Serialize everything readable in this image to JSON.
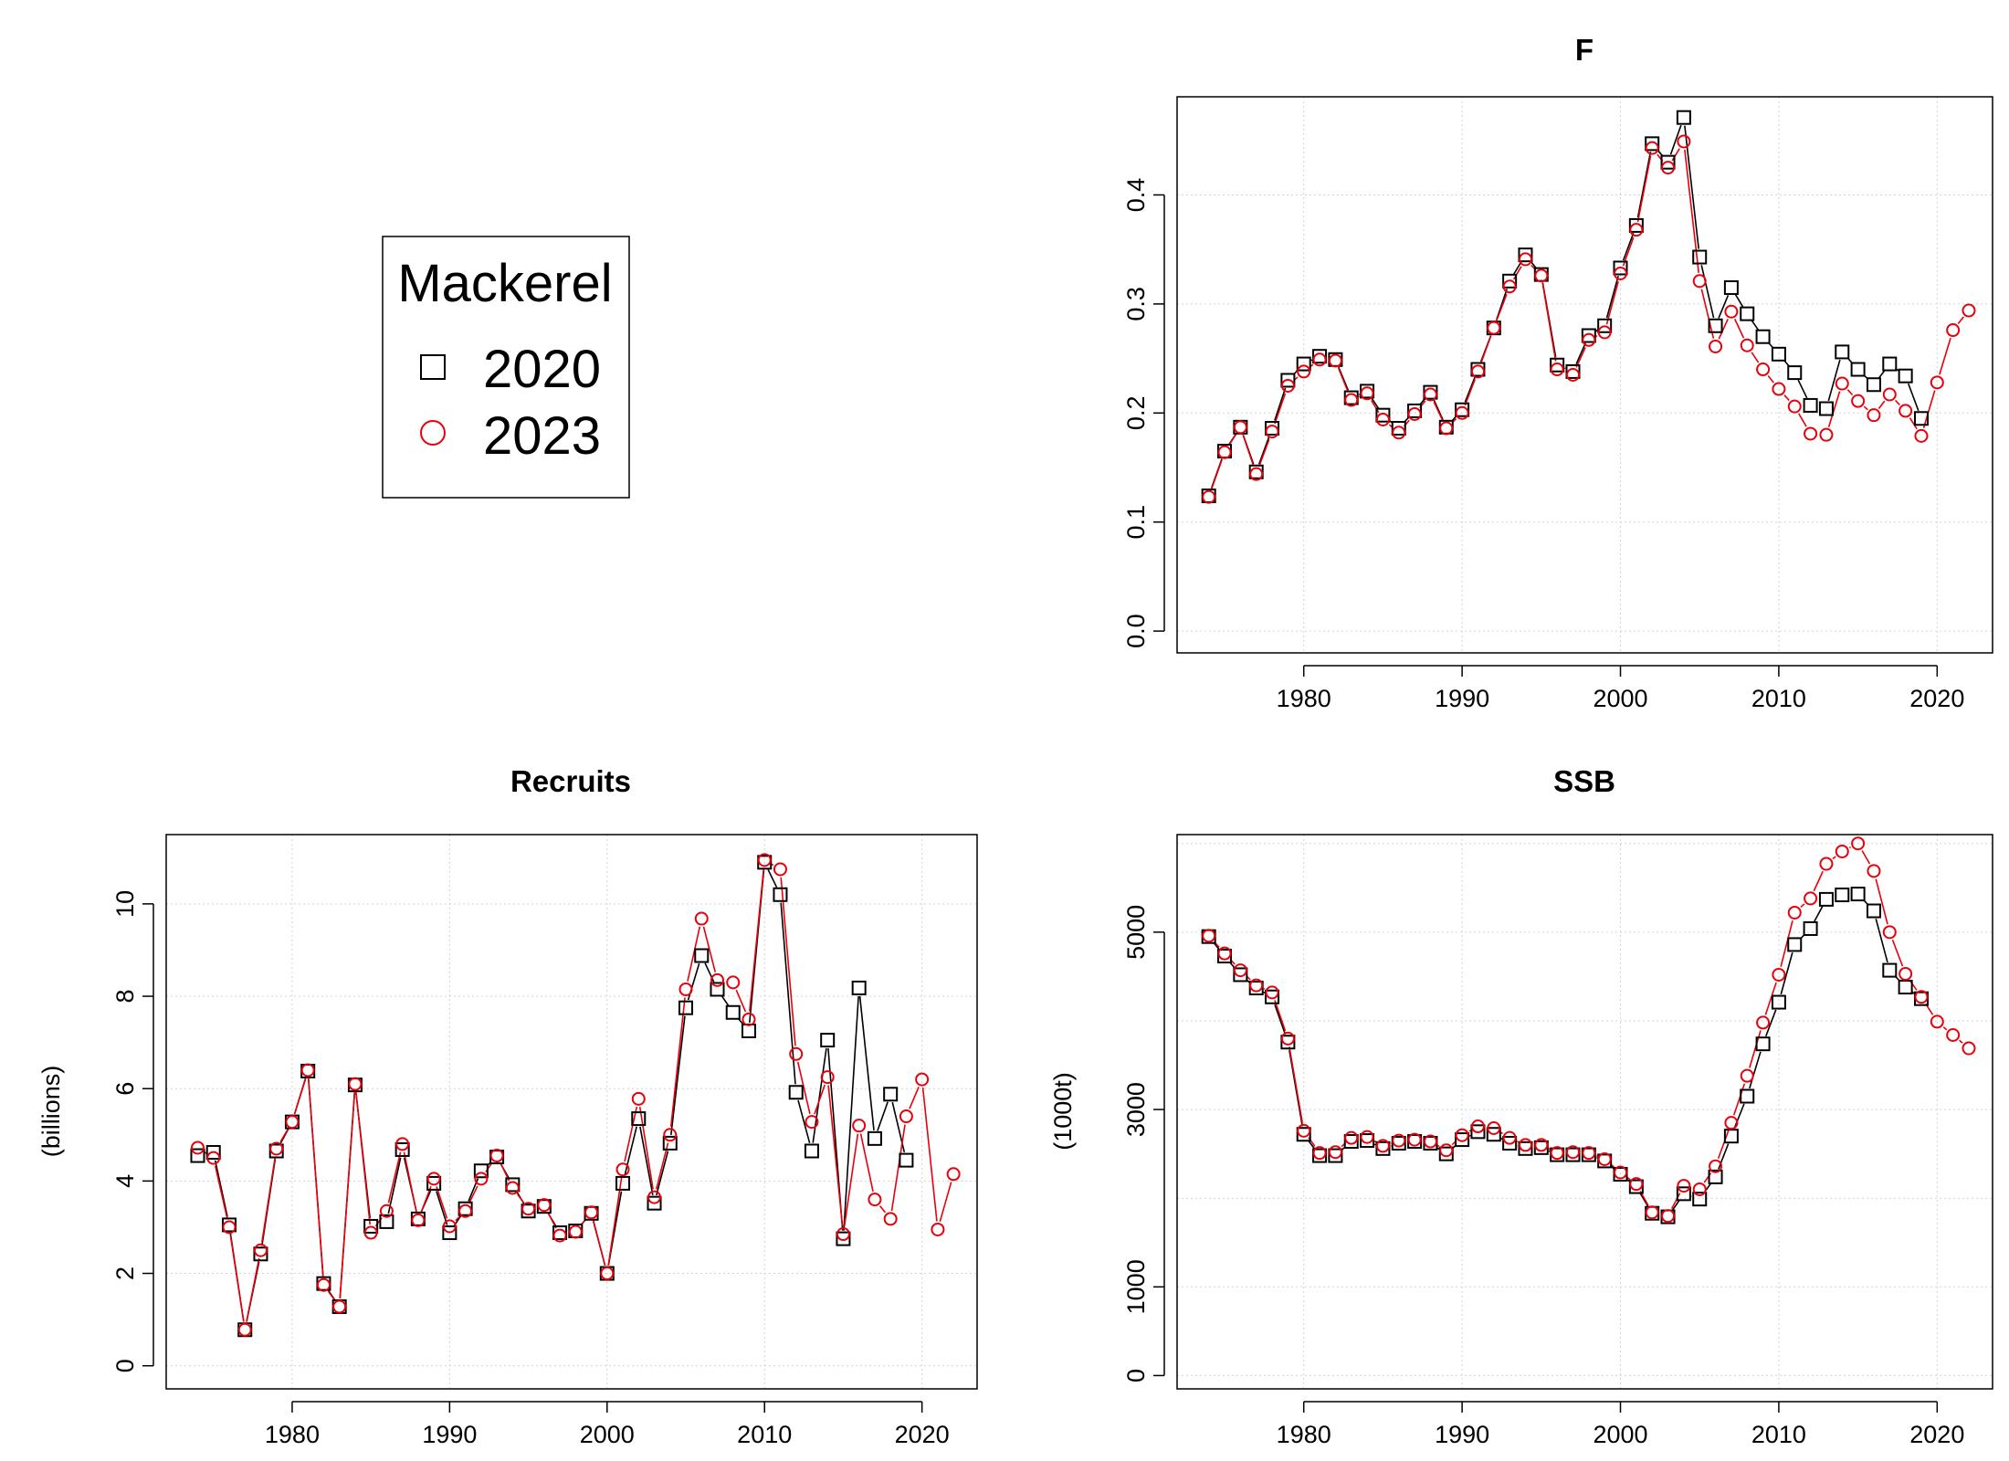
{
  "legend": {
    "title": "Mackerel",
    "entries": [
      {
        "label": "2020",
        "marker": "square",
        "color": "#000000"
      },
      {
        "label": "2023",
        "marker": "circle",
        "color": "#e8000b"
      }
    ]
  },
  "chart_data": [
    {
      "id": "F",
      "type": "line",
      "title": "F",
      "xlabel": "",
      "ylabel": "",
      "xlim": [
        1972,
        2023.5
      ],
      "ylim": [
        -0.02,
        0.49
      ],
      "xticks": [
        1980,
        1990,
        2000,
        2010,
        2020
      ],
      "yticks": [
        0.0,
        0.1,
        0.2,
        0.3,
        0.4
      ],
      "ytick_labels": [
        "0.0",
        "0.1",
        "0.2",
        "0.3",
        "0.4"
      ],
      "grid": true,
      "series": [
        {
          "name": "2020",
          "color": "#000000",
          "marker": "square",
          "start": 1974,
          "values": [
            0.124,
            0.165,
            0.187,
            0.146,
            0.186,
            0.23,
            0.245,
            0.252,
            0.249,
            0.214,
            0.22,
            0.198,
            0.186,
            0.202,
            0.219,
            0.187,
            0.203,
            0.24,
            0.278,
            0.321,
            0.345,
            0.327,
            0.244,
            0.238,
            0.271,
            0.28,
            0.333,
            0.372,
            0.447,
            0.43,
            0.471,
            0.343,
            0.28,
            0.315,
            0.291,
            0.27,
            0.254,
            0.237,
            0.207,
            0.204,
            0.256,
            0.24,
            0.226,
            0.245,
            0.234,
            0.195
          ]
        },
        {
          "name": "2023",
          "color": "#e8000b",
          "marker": "circle",
          "start": 1974,
          "values": [
            0.123,
            0.164,
            0.187,
            0.144,
            0.183,
            0.225,
            0.238,
            0.249,
            0.248,
            0.212,
            0.218,
            0.194,
            0.182,
            0.199,
            0.217,
            0.186,
            0.2,
            0.238,
            0.278,
            0.316,
            0.341,
            0.326,
            0.24,
            0.235,
            0.267,
            0.274,
            0.328,
            0.368,
            0.443,
            0.425,
            0.449,
            0.321,
            0.261,
            0.293,
            0.262,
            0.24,
            0.222,
            0.206,
            0.181,
            0.18,
            0.227,
            0.211,
            0.198,
            0.217,
            0.202,
            0.179,
            0.228,
            0.276,
            0.294
          ]
        }
      ]
    },
    {
      "id": "Recruits",
      "type": "line",
      "title": "Recruits",
      "xlabel": "",
      "ylabel": "(billions)",
      "xlim": [
        1972,
        2023.5
      ],
      "ylim": [
        -0.5,
        11.5
      ],
      "xticks": [
        1980,
        1990,
        2000,
        2010,
        2020
      ],
      "yticks": [
        0,
        2,
        4,
        6,
        8,
        10
      ],
      "ytick_labels": [
        "0",
        "2",
        "4",
        "6",
        "8",
        "10"
      ],
      "grid": true,
      "series": [
        {
          "name": "2020",
          "color": "#000000",
          "marker": "square",
          "start": 1974,
          "values": [
            4.55,
            4.62,
            3.05,
            0.78,
            2.42,
            4.65,
            5.28,
            6.38,
            1.78,
            1.28,
            6.08,
            3.02,
            3.12,
            4.68,
            3.18,
            3.95,
            2.88,
            3.4,
            4.22,
            4.52,
            3.92,
            3.35,
            3.45,
            2.88,
            2.92,
            3.3,
            2.0,
            3.95,
            5.35,
            3.52,
            4.82,
            7.75,
            8.88,
            8.15,
            7.65,
            7.25,
            10.9,
            10.2,
            5.92,
            4.65,
            7.05,
            2.75,
            8.18,
            4.92,
            5.88,
            4.45
          ]
        },
        {
          "name": "2023",
          "color": "#e8000b",
          "marker": "circle",
          "start": 1974,
          "values": [
            4.72,
            4.5,
            3.0,
            0.78,
            2.5,
            4.7,
            5.28,
            6.4,
            1.75,
            1.28,
            6.1,
            2.88,
            3.35,
            4.8,
            3.15,
            4.05,
            3.02,
            3.35,
            4.05,
            4.55,
            3.85,
            3.4,
            3.48,
            2.82,
            2.9,
            3.32,
            2.0,
            4.25,
            5.78,
            3.65,
            5.0,
            8.15,
            9.68,
            8.35,
            8.3,
            7.5,
            10.95,
            10.75,
            6.75,
            5.28,
            6.25,
            2.85,
            5.2,
            3.6,
            3.18,
            5.4,
            6.2,
            2.95,
            4.15
          ]
        }
      ]
    },
    {
      "id": "SSB",
      "type": "line",
      "title": "SSB",
      "xlabel": "",
      "ylabel": "(1000t)",
      "xlim": [
        1972,
        2023.5
      ],
      "ylim": [
        -150,
        6100
      ],
      "xticks": [
        1980,
        1990,
        2000,
        2010,
        2020
      ],
      "yticks": [
        0,
        1000,
        3000,
        5000
      ],
      "ytick_labels": [
        "0",
        "1000",
        "3000",
        "5000"
      ],
      "grid": true,
      "grid_lines": [
        0,
        1000,
        2000,
        3000,
        4000,
        5000,
        6000
      ],
      "series": [
        {
          "name": "2020",
          "color": "#000000",
          "marker": "square",
          "start": 1974,
          "values": [
            4950,
            4730,
            4520,
            4370,
            4270,
            3760,
            2720,
            2480,
            2480,
            2640,
            2650,
            2560,
            2620,
            2640,
            2620,
            2500,
            2660,
            2750,
            2720,
            2620,
            2560,
            2570,
            2490,
            2490,
            2490,
            2420,
            2270,
            2130,
            1830,
            1790,
            2050,
            1990,
            2240,
            2700,
            3150,
            3740,
            4210,
            4860,
            5040,
            5370,
            5420,
            5430,
            5240,
            4570,
            4380,
            4250
          ]
        },
        {
          "name": "2023",
          "color": "#e8000b",
          "marker": "circle",
          "start": 1974,
          "values": [
            4960,
            4760,
            4570,
            4400,
            4320,
            3800,
            2760,
            2510,
            2520,
            2680,
            2690,
            2590,
            2650,
            2660,
            2640,
            2540,
            2710,
            2810,
            2790,
            2680,
            2600,
            2600,
            2510,
            2520,
            2510,
            2440,
            2290,
            2160,
            1840,
            1800,
            2140,
            2100,
            2360,
            2850,
            3380,
            3980,
            4520,
            5220,
            5380,
            5770,
            5910,
            6000,
            5690,
            5000,
            4530,
            4270,
            3990,
            3840,
            3690
          ]
        }
      ]
    }
  ]
}
